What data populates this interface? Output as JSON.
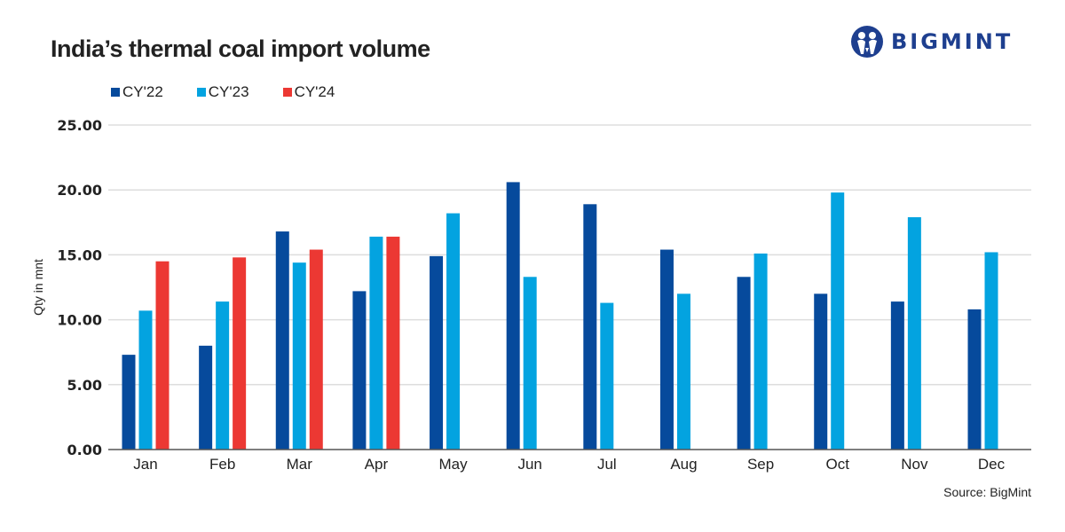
{
  "header": {
    "title": "India’s thermal coal import volume",
    "logo_text": "BIGMINT",
    "logo_icon": "bigmint-logo-icon"
  },
  "footer": {
    "source": "Source: BigMint"
  },
  "colors": {
    "cy22": "#064a9c",
    "cy23": "#03a3e0",
    "cy24": "#ec3833",
    "logo": "#1e3f8f",
    "grid": "#dddddd",
    "axis": "#555555"
  },
  "chart_data": {
    "type": "bar",
    "title": "India’s thermal coal import volume",
    "xlabel": "",
    "ylabel": "Qty in mnt",
    "ylim": [
      0,
      25
    ],
    "yticks": [
      "0.00",
      "5.00",
      "10.00",
      "15.00",
      "20.00",
      "25.00"
    ],
    "grid": true,
    "legend_position": "top-left",
    "categories": [
      "Jan",
      "Feb",
      "Mar",
      "Apr",
      "May",
      "Jun",
      "Jul",
      "Aug",
      "Sep",
      "Oct",
      "Nov",
      "Dec"
    ],
    "series": [
      {
        "name": "CY'22",
        "color": "#064a9c",
        "values": [
          7.3,
          8.0,
          16.8,
          12.2,
          14.9,
          20.6,
          18.9,
          15.4,
          13.3,
          12.0,
          11.4,
          10.8
        ]
      },
      {
        "name": "CY'23",
        "color": "#03a3e0",
        "values": [
          10.7,
          11.4,
          14.4,
          16.4,
          18.2,
          13.3,
          11.3,
          12.0,
          15.1,
          19.8,
          17.9,
          15.2
        ]
      },
      {
        "name": "CY'24",
        "color": "#ec3833",
        "values": [
          14.5,
          14.8,
          15.4,
          16.4,
          null,
          null,
          null,
          null,
          null,
          null,
          null,
          null
        ]
      }
    ]
  }
}
